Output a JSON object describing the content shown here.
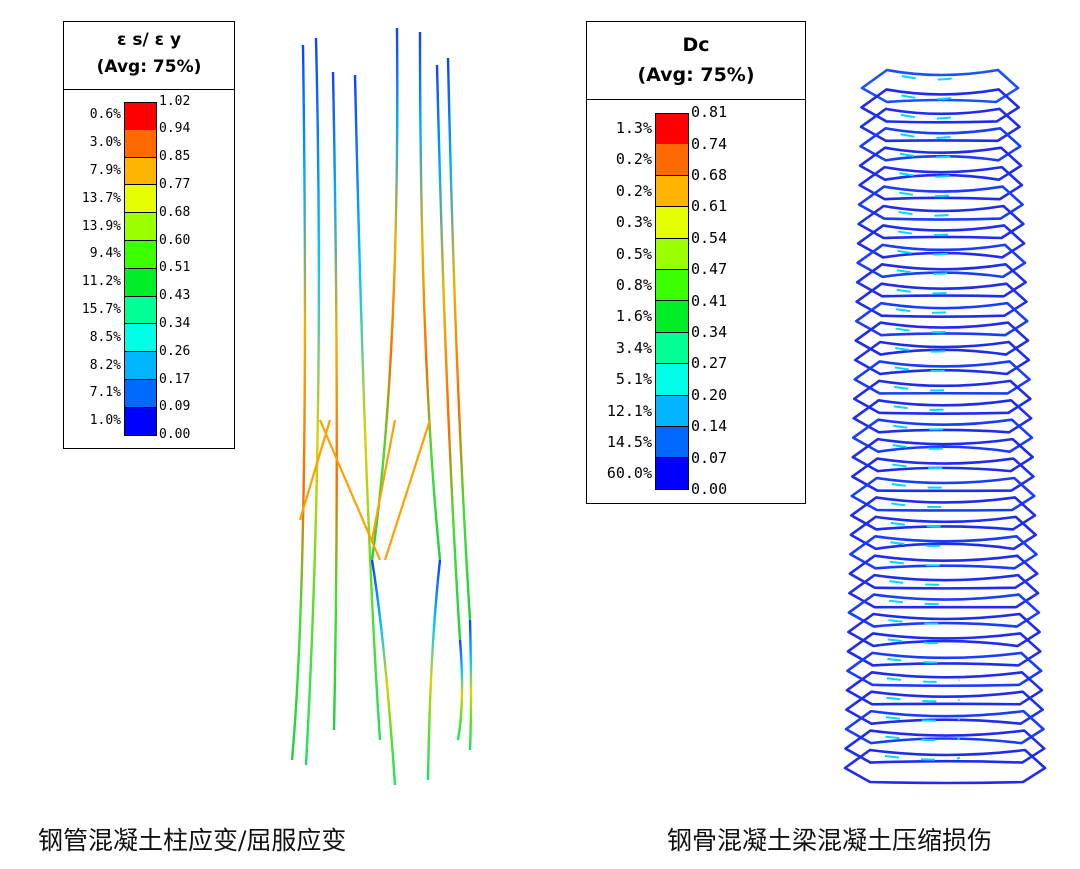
{
  "legend_left": {
    "title": "ε s/ ε y",
    "subtitle": "(Avg: 75%)",
    "values": [
      "1.02",
      "0.94",
      "0.85",
      "0.77",
      "0.68",
      "0.60",
      "0.51",
      "0.43",
      "0.34",
      "0.26",
      "0.17",
      "0.09",
      "0.00"
    ],
    "percents": [
      "0.6%",
      "3.0%",
      "7.9%",
      "13.7%",
      "13.9%",
      "9.4%",
      "11.2%",
      "15.7%",
      "8.5%",
      "8.2%",
      "7.1%",
      "1.0%"
    ],
    "colors": [
      "#ff0000",
      "#ff6a00",
      "#ffb400",
      "#e6ff00",
      "#9cff00",
      "#3cff00",
      "#00ee28",
      "#00ff96",
      "#00ffe6",
      "#00b4ff",
      "#0069ff",
      "#0000ff"
    ]
  },
  "legend_right": {
    "title": "Dc",
    "subtitle": "(Avg: 75%)",
    "values": [
      "0.81",
      "0.74",
      "0.68",
      "0.61",
      "0.54",
      "0.47",
      "0.41",
      "0.34",
      "0.27",
      "0.20",
      "0.14",
      "0.07",
      "0.00"
    ],
    "percents": [
      "1.3%",
      "0.2%",
      "0.2%",
      "0.3%",
      "0.5%",
      "0.8%",
      "1.6%",
      "3.4%",
      "5.1%",
      "12.1%",
      "14.5%",
      "60.0%"
    ],
    "colors": [
      "#ff0000",
      "#ff6a00",
      "#ffb400",
      "#e6ff00",
      "#9cff00",
      "#3cff00",
      "#00ee28",
      "#00ff96",
      "#00ffe6",
      "#00b4ff",
      "#0069ff",
      "#0000ff"
    ]
  },
  "captions": {
    "left": "钢管混凝土柱应变/屈服应变",
    "right": "钢骨混凝土梁混凝土压缩损伤"
  }
}
